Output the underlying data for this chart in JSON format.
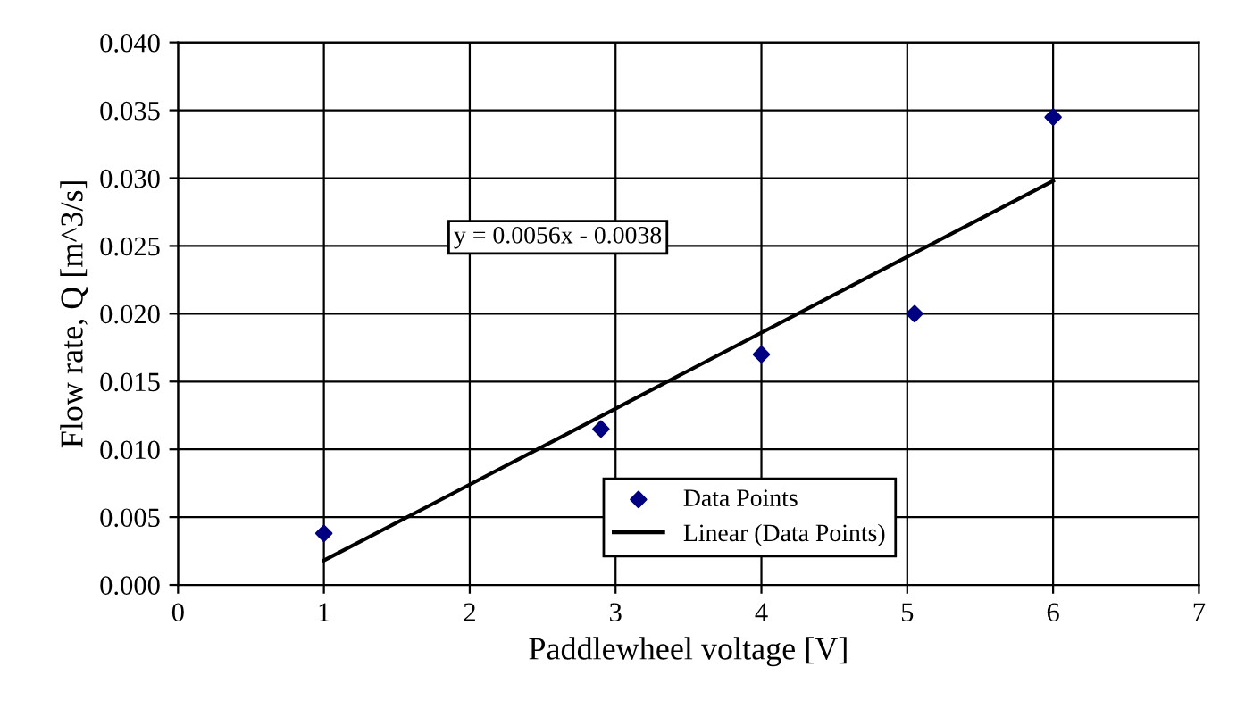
{
  "chart_data": {
    "type": "scatter",
    "xlabel": "Paddlewheel voltage [V]",
    "ylabel": "Flow rate, Q [m^3/s]",
    "xlim": [
      0,
      7
    ],
    "xticks": [
      0,
      1,
      2,
      3,
      4,
      5,
      6,
      7
    ],
    "ylim": [
      0,
      0.04
    ],
    "yticks": [
      {
        "value": 0,
        "label": "0.000"
      },
      {
        "value": 0.005,
        "label": "0.005"
      },
      {
        "value": 0.01,
        "label": "0.010"
      },
      {
        "value": 0.015,
        "label": "0.015"
      },
      {
        "value": 0.02,
        "label": "0.020"
      },
      {
        "value": 0.025,
        "label": "0.025"
      },
      {
        "value": 0.03,
        "label": "0.030"
      },
      {
        "value": 0.035,
        "label": "0.035"
      },
      {
        "value": 0.04,
        "label": "0.040"
      }
    ],
    "grid": true,
    "legend": "bottom right",
    "annotations": [
      "y = 0.0056x - 0.0038"
    ],
    "series": [
      {
        "name": "Data Points",
        "marker": "diamond",
        "color": "#000080",
        "x": [
          1,
          2.9,
          4,
          5.05,
          6
        ],
        "values": [
          0.0038,
          0.0115,
          0.017,
          0.02,
          0.0345
        ]
      },
      {
        "name": "Linear (Data Points)",
        "type": "line",
        "marker": "none",
        "line_style": "solid",
        "color": "#000000",
        "x": [
          1,
          6
        ],
        "values": [
          0.0018,
          0.0298
        ]
      }
    ]
  }
}
